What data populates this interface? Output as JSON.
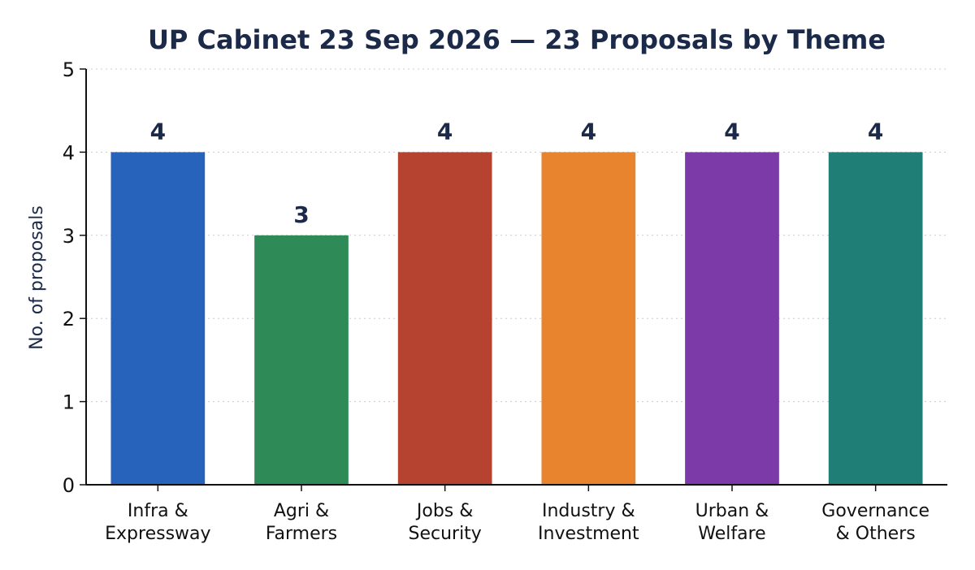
{
  "chart_data": {
    "type": "bar",
    "title": "UP Cabinet 23 Sep 2026 — 23 Proposals by Theme",
    "xlabel": "",
    "ylabel": "No. of proposals",
    "ylim": [
      0,
      5
    ],
    "yticks": [
      0,
      1,
      2,
      3,
      4,
      5
    ],
    "grid": "y-dotted",
    "categories": [
      [
        "Infra &",
        "Expressway"
      ],
      [
        "Agri &",
        "Farmers"
      ],
      [
        "Jobs &",
        "Security"
      ],
      [
        "Industry &",
        "Investment"
      ],
      [
        "Urban &",
        "Welfare"
      ],
      [
        "Governance",
        "& Others"
      ]
    ],
    "values": [
      4,
      3,
      4,
      4,
      4,
      4
    ],
    "colors": [
      "#2763bb",
      "#2e8a57",
      "#b5432f",
      "#e8842e",
      "#7b3aa8",
      "#1f7f76"
    ]
  }
}
